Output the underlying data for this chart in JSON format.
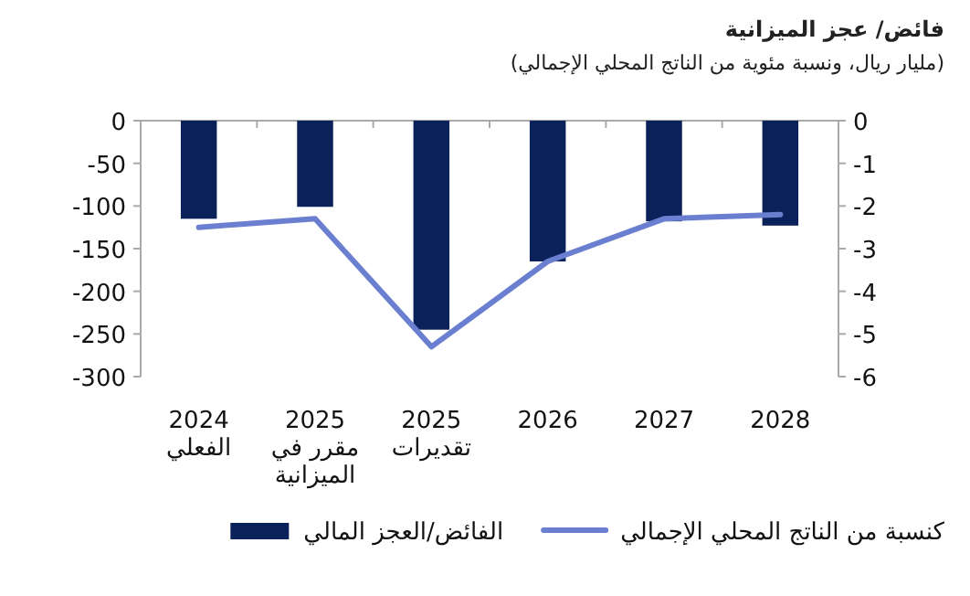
{
  "chart_data": {
    "type": "bar",
    "title": "فائض/ عجز الميزانية",
    "subtitle": "(مليار ريال، ونسبة مئوية من الناتج المحلي الإجمالي)",
    "categories": [
      "2024\nالفعلي",
      "2025\nمقرر في\nالميزانية",
      "2025\nتقديرات",
      "2026",
      "2027",
      "2028"
    ],
    "series": [
      {
        "name": "الفائض/العجز المالي",
        "color": "#0a2259",
        "values": [
          -115,
          -101,
          -245,
          -165,
          -118,
          -123
        ]
      },
      {
        "name": "كنسبة من الناتج المحلي الإجمالي",
        "type": "line",
        "axis": "y2",
        "color": "#6b7fd0",
        "values": [
          -2.5,
          -2.3,
          -5.3,
          -3.3,
          -2.3,
          -2.2
        ]
      }
    ],
    "ylim": [
      -300,
      0
    ],
    "yticks": [
      0,
      -50,
      -100,
      -150,
      -200,
      -250,
      -300
    ],
    "y2lim": [
      -6,
      0
    ],
    "y2ticks": [
      0,
      -1,
      -2,
      -3,
      -4,
      -5,
      -6
    ],
    "legend": "bottom",
    "grid": false
  }
}
